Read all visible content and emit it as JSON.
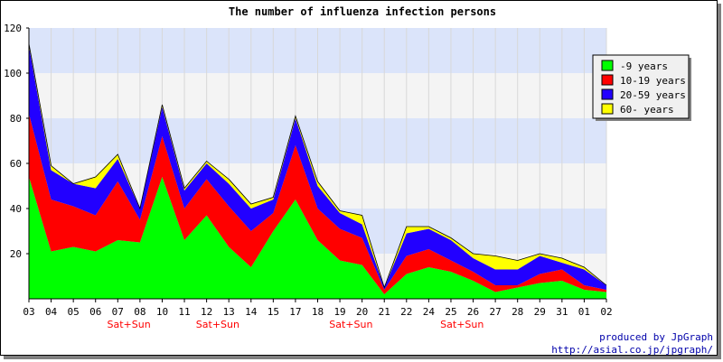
{
  "chart_data": {
    "type": "area",
    "stacked": true,
    "title": "The number of influenza infection persons",
    "x": [
      "03",
      "04",
      "05",
      "06",
      "07",
      "08",
      "10",
      "11",
      "12",
      "13",
      "14",
      "15",
      "17",
      "18",
      "19",
      "20",
      "21",
      "22",
      "24",
      "25",
      "26",
      "27",
      "28",
      "29",
      "31",
      "01",
      "02"
    ],
    "weekend_labels": [
      {
        "after": "07",
        "text": "Sat+Sun"
      },
      {
        "after": "12",
        "text": "Sat+Sun"
      },
      {
        "after": "19",
        "text": "Sat+Sun"
      },
      {
        "after": "25",
        "text": "Sat+Sun"
      }
    ],
    "ylim": [
      0,
      120
    ],
    "yticks": [
      20,
      40,
      60,
      80,
      100,
      120
    ],
    "grid": true,
    "legend_position": "top-right",
    "series": [
      {
        "name": "-9 years",
        "color": "#00ff00",
        "values": [
          54,
          21,
          23,
          21,
          26,
          25,
          54,
          26,
          37,
          23,
          14,
          30,
          44,
          26,
          17,
          15,
          2,
          11,
          14,
          12,
          8,
          3,
          5,
          7,
          8,
          4,
          3
        ]
      },
      {
        "name": "10-19 years",
        "color": "#ff0000",
        "values": [
          28,
          23,
          18,
          16,
          26,
          10,
          18,
          14,
          16,
          18,
          16,
          8,
          24,
          14,
          14,
          12,
          2,
          8,
          8,
          5,
          4,
          3,
          1,
          4,
          5,
          2,
          1
        ]
      },
      {
        "name": "20-59 years",
        "color": "#2200ff",
        "values": [
          30,
          13,
          10,
          12,
          10,
          5,
          13,
          8,
          7,
          10,
          10,
          6,
          12,
          10,
          7,
          6,
          1,
          10,
          9,
          9,
          6,
          7,
          7,
          8,
          3,
          7,
          2
        ]
      },
      {
        "name": "60- years",
        "color": "#ffff00",
        "values": [
          1,
          2,
          0,
          5,
          2,
          0,
          1,
          1,
          1,
          2,
          2,
          1,
          1,
          2,
          1,
          4,
          0,
          3,
          1,
          1,
          2,
          6,
          4,
          1,
          2,
          1,
          0
        ]
      }
    ]
  },
  "credits": {
    "line1": "produced by JpGraph",
    "line2": "http://asial.co.jp/jpgraph/"
  },
  "colors": {
    "band_blue": "#dbe4fa",
    "band_grey": "#f4f4f4",
    "weekend": "#ff0000",
    "credit": "#0000aa"
  }
}
